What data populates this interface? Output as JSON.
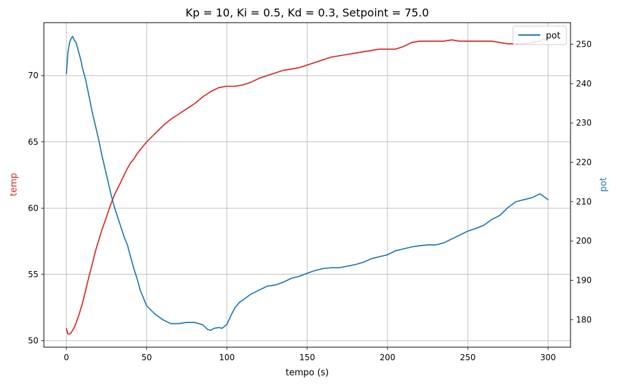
{
  "chart_data": {
    "type": "line",
    "title": "Kp = 10, Ki = 0.5, Kd = 0.3, Setpoint = 75.0",
    "xlabel": "tempo (s)",
    "ylabel_left": "temp",
    "ylabel_right": "pot",
    "xlim": [
      -14,
      314
    ],
    "ylim_left": [
      49.5,
      74.0
    ],
    "ylim_right": [
      173.0,
      255.5
    ],
    "x_ticks": [
      0,
      50,
      100,
      150,
      200,
      250,
      300
    ],
    "y_ticks_left": [
      50,
      55,
      60,
      65,
      70
    ],
    "y_ticks_right": [
      180,
      190,
      200,
      210,
      220,
      230,
      240,
      250
    ],
    "grid": true,
    "legend": {
      "position": "top-right",
      "entries": [
        "pot"
      ]
    },
    "colors": {
      "temp": "#d62728",
      "pot": "#1f77b4",
      "grid": "#b0b0b0",
      "axis": "#000000"
    },
    "series": [
      {
        "axis": "left",
        "color": "#d62728",
        "x": [
          0,
          1,
          2,
          3,
          4,
          5,
          6,
          8,
          10,
          12,
          14,
          16,
          18,
          20,
          22,
          24,
          26,
          28,
          30,
          32,
          34,
          36,
          38,
          40,
          42,
          44,
          46,
          48,
          50,
          55,
          60,
          65,
          70,
          75,
          80,
          85,
          90,
          95,
          100,
          105,
          110,
          115,
          120,
          125,
          130,
          135,
          140,
          145,
          150,
          155,
          160,
          165,
          170,
          175,
          180,
          185,
          190,
          195,
          200,
          205,
          210,
          215,
          220,
          225,
          230,
          235,
          240,
          245,
          250,
          255,
          260,
          265,
          270,
          275,
          280,
          285,
          290,
          295,
          300
        ],
        "y": [
          50.9,
          50.5,
          50.5,
          50.6,
          50.8,
          51.0,
          51.3,
          52.0,
          52.8,
          53.8,
          54.8,
          55.7,
          56.7,
          57.5,
          58.3,
          59.0,
          59.7,
          60.4,
          61.0,
          61.5,
          62.0,
          62.5,
          63.0,
          63.4,
          63.7,
          64.1,
          64.4,
          64.7,
          65.0,
          65.6,
          66.2,
          66.7,
          67.1,
          67.5,
          67.9,
          68.4,
          68.8,
          69.1,
          69.2,
          69.2,
          69.3,
          69.5,
          69.8,
          70.0,
          70.2,
          70.4,
          70.5,
          70.6,
          70.8,
          71.0,
          71.2,
          71.4,
          71.5,
          71.6,
          71.7,
          71.8,
          71.9,
          72.0,
          72.0,
          72.0,
          72.2,
          72.5,
          72.6,
          72.6,
          72.6,
          72.6,
          72.7,
          72.6,
          72.6,
          72.6,
          72.6,
          72.6,
          72.5,
          72.4,
          72.4,
          72.4,
          72.5,
          72.6,
          72.9
        ]
      },
      {
        "name": "pot",
        "axis": "right",
        "color": "#1f77b4",
        "x": [
          0,
          1,
          2,
          3,
          4,
          5,
          6,
          7,
          8,
          9,
          10,
          11,
          12,
          13,
          14,
          15,
          16,
          18,
          20,
          22,
          24,
          26,
          28,
          30,
          32,
          34,
          36,
          38,
          40,
          42,
          44,
          46,
          48,
          50,
          55,
          60,
          65,
          70,
          75,
          80,
          85,
          88,
          90,
          92,
          95,
          97,
          100,
          103,
          105,
          108,
          110,
          115,
          120,
          125,
          130,
          135,
          140,
          145,
          150,
          155,
          160,
          165,
          170,
          175,
          180,
          185,
          190,
          195,
          200,
          205,
          210,
          215,
          220,
          225,
          230,
          235,
          240,
          245,
          250,
          255,
          260,
          265,
          270,
          275,
          280,
          285,
          290,
          295,
          300
        ],
        "y": [
          242.5,
          248.0,
          250.5,
          251.5,
          252.0,
          251.0,
          250.5,
          249.0,
          247.5,
          246.0,
          244.0,
          242.5,
          241.0,
          239.0,
          237.0,
          235.0,
          233.0,
          229.5,
          226.0,
          222.0,
          218.5,
          215.0,
          211.5,
          208.5,
          206.0,
          203.5,
          201.0,
          199.0,
          196.0,
          193.0,
          190.5,
          187.5,
          185.5,
          183.5,
          181.5,
          180.0,
          179.0,
          179.0,
          179.3,
          179.3,
          178.7,
          177.5,
          177.3,
          177.8,
          178.0,
          177.8,
          178.8,
          181.5,
          183.0,
          184.5,
          185.0,
          186.5,
          187.5,
          188.5,
          188.8,
          189.5,
          190.5,
          191.0,
          191.8,
          192.5,
          193.0,
          193.2,
          193.2,
          193.6,
          194.0,
          194.6,
          195.5,
          196.0,
          196.5,
          197.5,
          198.0,
          198.5,
          198.8,
          199.0,
          199.0,
          199.5,
          200.5,
          201.5,
          202.5,
          203.2,
          204.0,
          205.5,
          206.5,
          208.5,
          210.0,
          210.5,
          211.0,
          212.0,
          210.5
        ]
      }
    ]
  }
}
